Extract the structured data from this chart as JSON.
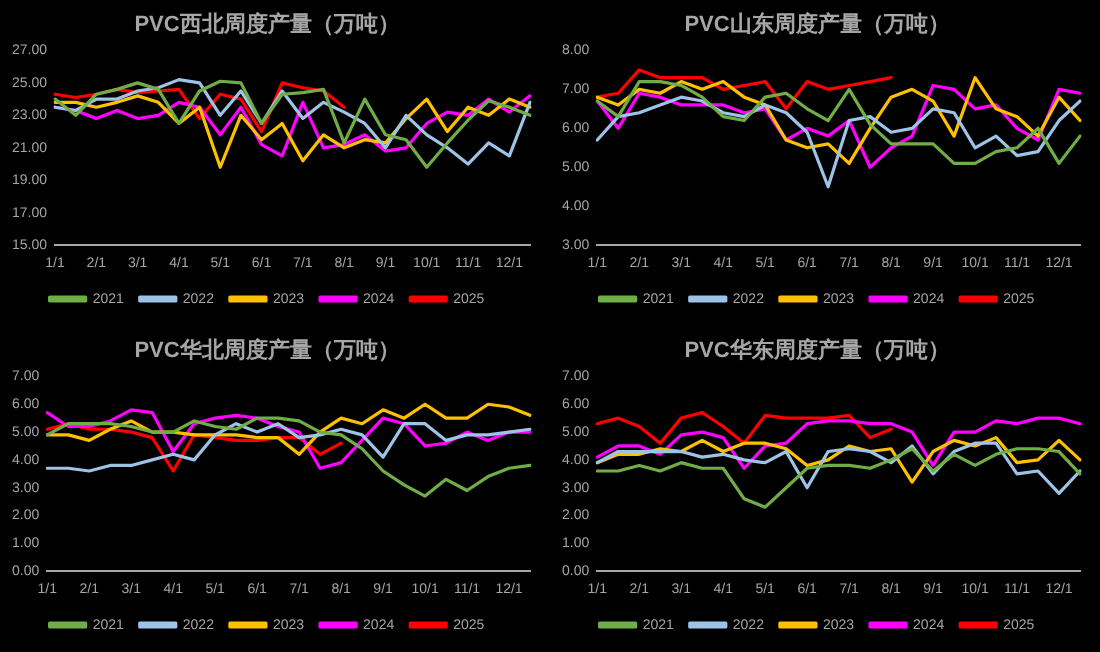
{
  "chart_data": [
    {
      "type": "line",
      "title": "PVC西北周度产量（万吨）",
      "legend": "bottom",
      "marker": "none",
      "categories": [
        "1/1",
        null,
        "2/1",
        null,
        "3/1",
        null,
        "4/1",
        null,
        "5/1",
        null,
        "6/1",
        null,
        "7/1",
        null,
        "8/1",
        null,
        "9/1",
        null,
        "10/1",
        null,
        "11/1",
        null,
        "12/1",
        null
      ],
      "ylim": [
        15,
        27
      ],
      "yticks": [
        {
          "value": 15,
          "label": "15.00"
        },
        {
          "value": 17,
          "label": "17.00"
        },
        {
          "value": 19,
          "label": "19.00"
        },
        {
          "value": 21,
          "label": "21.00"
        },
        {
          "value": 23,
          "label": "23.00"
        },
        {
          "value": 25,
          "label": "25.00"
        },
        {
          "value": 27,
          "label": "27.00"
        }
      ],
      "series": [
        {
          "name": "2021",
          "color": "#70ad47",
          "values": [
            24.0,
            23.0,
            24.3,
            24.6,
            25.0,
            24.6,
            22.5,
            24.5,
            25.1,
            25.0,
            22.5,
            24.3,
            24.4,
            24.6,
            21.3,
            24.0,
            21.8,
            21.5,
            19.8,
            21.3,
            22.7,
            23.9,
            23.5,
            23.0
          ]
        },
        {
          "name": "2022",
          "color": "#9dc3e6",
          "values": [
            23.5,
            23.3,
            24.0,
            24.0,
            24.5,
            24.7,
            25.2,
            25.0,
            23.0,
            24.5,
            22.5,
            24.5,
            22.8,
            23.8,
            23.2,
            22.5,
            21.0,
            23.0,
            21.8,
            21.0,
            20.0,
            21.3,
            20.5,
            23.8
          ]
        },
        {
          "name": "2023",
          "color": "#ffc000",
          "values": [
            23.8,
            23.8,
            23.5,
            23.8,
            24.2,
            23.8,
            22.5,
            23.5,
            19.8,
            23.0,
            21.5,
            22.5,
            20.2,
            21.8,
            21.0,
            21.5,
            21.3,
            22.8,
            24.0,
            22.0,
            23.5,
            23.0,
            24.0,
            23.5
          ]
        },
        {
          "name": "2024",
          "color": "#ff00ff",
          "values": [
            23.5,
            23.3,
            22.8,
            23.3,
            22.8,
            23.0,
            23.8,
            23.5,
            21.8,
            23.5,
            21.2,
            20.5,
            23.8,
            21.0,
            21.2,
            21.8,
            20.8,
            21.0,
            22.5,
            23.2,
            23.0,
            24.0,
            23.2,
            24.2
          ]
        },
        {
          "name": "2025",
          "color": "#ff0000",
          "values": [
            24.3,
            24.1,
            24.3,
            24.6,
            24.4,
            24.5,
            24.6,
            22.8,
            24.3,
            24.0,
            22.0,
            25.0,
            24.7,
            24.5,
            23.5,
            null,
            null,
            null,
            null,
            null,
            null,
            null,
            null,
            null
          ]
        }
      ]
    },
    {
      "type": "line",
      "title": "PVC山东周度产量（万吨）",
      "legend": "bottom",
      "marker": "none",
      "categories": [
        "1/1",
        null,
        "2/1",
        null,
        "3/1",
        null,
        "4/1",
        null,
        "5/1",
        null,
        "6/1",
        null,
        "7/1",
        null,
        "8/1",
        null,
        "9/1",
        null,
        "10/1",
        null,
        "11/1",
        null,
        "12/1",
        null
      ],
      "ylim": [
        3,
        8
      ],
      "yticks": [
        {
          "value": 3,
          "label": "3.00"
        },
        {
          "value": 4,
          "label": "4.00"
        },
        {
          "value": 5,
          "label": "5.00"
        },
        {
          "value": 6,
          "label": "6.00"
        },
        {
          "value": 7,
          "label": "7.00"
        },
        {
          "value": 8,
          "label": "8.00"
        }
      ],
      "series": [
        {
          "name": "2021",
          "color": "#70ad47",
          "values": [
            6.7,
            6.3,
            7.2,
            7.2,
            7.1,
            6.8,
            6.3,
            6.2,
            6.8,
            6.9,
            6.5,
            6.2,
            7.0,
            6.1,
            5.6,
            5.6,
            5.6,
            5.1,
            5.1,
            5.4,
            5.5,
            6.0,
            5.1,
            5.8
          ]
        },
        {
          "name": "2022",
          "color": "#9dc3e6",
          "values": [
            5.7,
            6.3,
            6.4,
            6.6,
            6.8,
            6.7,
            6.4,
            6.3,
            6.6,
            6.4,
            5.9,
            4.5,
            6.2,
            6.3,
            5.9,
            6.0,
            6.5,
            6.4,
            5.5,
            5.8,
            5.3,
            5.4,
            6.2,
            6.7
          ]
        },
        {
          "name": "2023",
          "color": "#ffc000",
          "values": [
            6.8,
            6.6,
            7.0,
            6.9,
            7.2,
            7.0,
            7.2,
            6.8,
            6.6,
            5.7,
            5.5,
            5.6,
            5.1,
            6.0,
            6.8,
            7.0,
            6.7,
            5.8,
            7.3,
            6.5,
            6.3,
            5.8,
            6.8,
            6.2
          ]
        },
        {
          "name": "2024",
          "color": "#ff00ff",
          "values": [
            6.7,
            6.0,
            6.9,
            6.8,
            6.6,
            6.6,
            6.6,
            6.4,
            6.5,
            5.7,
            6.0,
            5.8,
            6.2,
            5.0,
            5.5,
            5.8,
            7.1,
            7.0,
            6.5,
            6.6,
            6.0,
            5.7,
            7.0,
            6.9
          ]
        },
        {
          "name": "2025",
          "color": "#ff0000",
          "values": [
            6.8,
            6.9,
            7.5,
            7.3,
            7.3,
            7.3,
            7.0,
            7.1,
            7.2,
            6.5,
            7.2,
            7.0,
            7.1,
            7.2,
            7.3,
            null,
            null,
            null,
            null,
            null,
            null,
            null,
            null,
            null
          ]
        }
      ]
    },
    {
      "type": "line",
      "title": "PVC华北周度产量（万吨）",
      "legend": "bottom",
      "marker": "none",
      "categories": [
        "1/1",
        null,
        "2/1",
        null,
        "3/1",
        null,
        "4/1",
        null,
        "5/1",
        null,
        "6/1",
        null,
        "7/1",
        null,
        "8/1",
        null,
        "9/1",
        null,
        "10/1",
        null,
        "11/1",
        null,
        "12/1",
        null
      ],
      "ylim": [
        0,
        7
      ],
      "yticks": [
        {
          "value": 0,
          "label": "0.00"
        },
        {
          "value": 1,
          "label": "1.00"
        },
        {
          "value": 2,
          "label": "2.00"
        },
        {
          "value": 3,
          "label": "3.00"
        },
        {
          "value": 4,
          "label": "4.00"
        },
        {
          "value": 5,
          "label": "5.00"
        },
        {
          "value": 6,
          "label": "6.00"
        },
        {
          "value": 7,
          "label": "7.00"
        }
      ],
      "series": [
        {
          "name": "2021",
          "color": "#70ad47",
          "values": [
            4.9,
            5.3,
            5.3,
            5.3,
            5.2,
            5.0,
            5.0,
            5.4,
            5.2,
            5.1,
            5.5,
            5.5,
            5.4,
            5.0,
            4.9,
            4.4,
            3.6,
            3.1,
            2.7,
            3.3,
            2.9,
            3.4,
            3.7,
            3.8
          ]
        },
        {
          "name": "2022",
          "color": "#9dc3e6",
          "values": [
            3.7,
            3.7,
            3.6,
            3.8,
            3.8,
            4.0,
            4.2,
            4.0,
            4.9,
            5.3,
            5.0,
            5.3,
            4.8,
            4.9,
            5.1,
            4.9,
            4.1,
            5.3,
            5.3,
            4.7,
            4.9,
            4.9,
            5.0,
            5.1
          ]
        },
        {
          "name": "2023",
          "color": "#ffc000",
          "values": [
            4.9,
            4.9,
            4.7,
            5.1,
            5.4,
            5.0,
            5.0,
            4.9,
            4.9,
            4.9,
            4.8,
            4.8,
            4.2,
            5.0,
            5.5,
            5.3,
            5.8,
            5.5,
            6.0,
            5.5,
            5.5,
            6.0,
            5.9,
            5.6
          ]
        },
        {
          "name": "2024",
          "color": "#ff00ff",
          "values": [
            5.7,
            5.2,
            5.2,
            5.4,
            5.8,
            5.7,
            4.3,
            5.3,
            5.5,
            5.6,
            5.5,
            5.2,
            5.0,
            3.7,
            3.9,
            4.7,
            5.5,
            5.3,
            4.5,
            4.6,
            5.0,
            4.7,
            5.0,
            5.0
          ]
        },
        {
          "name": "2025",
          "color": "#ff0000",
          "values": [
            5.1,
            5.3,
            5.1,
            5.1,
            5.0,
            4.8,
            3.6,
            4.9,
            4.8,
            4.7,
            4.7,
            4.8,
            4.8,
            4.2,
            4.6,
            null,
            null,
            null,
            null,
            null,
            null,
            null,
            null,
            null
          ]
        }
      ]
    },
    {
      "type": "line",
      "title": "PVC华东周度产量（万吨）",
      "legend": "bottom",
      "marker": "none",
      "categories": [
        "1/1",
        null,
        "2/1",
        null,
        "3/1",
        null,
        "4/1",
        null,
        "5/1",
        null,
        "6/1",
        null,
        "7/1",
        null,
        "8/1",
        null,
        "9/1",
        null,
        "10/1",
        null,
        "11/1",
        null,
        "12/1",
        null
      ],
      "ylim": [
        0,
        7
      ],
      "yticks": [
        {
          "value": 0,
          "label": "0.00"
        },
        {
          "value": 1,
          "label": "1.00"
        },
        {
          "value": 2,
          "label": "2.00"
        },
        {
          "value": 3,
          "label": "3.00"
        },
        {
          "value": 4,
          "label": "4.00"
        },
        {
          "value": 5,
          "label": "5.00"
        },
        {
          "value": 6,
          "label": "6.00"
        },
        {
          "value": 7,
          "label": "7.00"
        }
      ],
      "series": [
        {
          "name": "2021",
          "color": "#70ad47",
          "values": [
            3.6,
            3.6,
            3.8,
            3.6,
            3.9,
            3.7,
            3.7,
            2.6,
            2.3,
            3.0,
            3.7,
            3.8,
            3.8,
            3.7,
            4.0,
            4.4,
            3.6,
            4.2,
            3.8,
            4.2,
            4.4,
            4.4,
            4.3,
            3.5
          ]
        },
        {
          "name": "2022",
          "color": "#9dc3e6",
          "values": [
            3.9,
            4.3,
            4.3,
            4.3,
            4.3,
            4.1,
            4.2,
            4.0,
            3.9,
            4.3,
            3.0,
            4.3,
            4.4,
            4.3,
            3.9,
            4.5,
            3.5,
            4.3,
            4.6,
            4.6,
            3.5,
            3.6,
            2.8,
            3.6
          ]
        },
        {
          "name": "2023",
          "color": "#ffc000",
          "values": [
            3.9,
            4.2,
            4.2,
            4.4,
            4.3,
            4.7,
            4.3,
            4.6,
            4.6,
            4.4,
            3.8,
            4.0,
            4.5,
            4.3,
            4.4,
            3.2,
            4.3,
            4.7,
            4.5,
            4.8,
            3.9,
            4.0,
            4.7,
            4.0
          ]
        },
        {
          "name": "2024",
          "color": "#ff00ff",
          "values": [
            4.1,
            4.5,
            4.5,
            4.2,
            4.9,
            5.0,
            4.8,
            3.7,
            4.5,
            4.6,
            5.3,
            5.4,
            5.4,
            5.3,
            5.3,
            5.0,
            3.8,
            5.0,
            5.0,
            5.4,
            5.3,
            5.5,
            5.5,
            5.3
          ]
        },
        {
          "name": "2025",
          "color": "#ff0000",
          "values": [
            5.3,
            5.5,
            5.2,
            4.6,
            5.5,
            5.7,
            5.2,
            4.6,
            5.6,
            5.5,
            5.5,
            5.5,
            5.6,
            4.8,
            5.1,
            null,
            null,
            null,
            null,
            null,
            null,
            null,
            null,
            null
          ]
        }
      ]
    }
  ]
}
